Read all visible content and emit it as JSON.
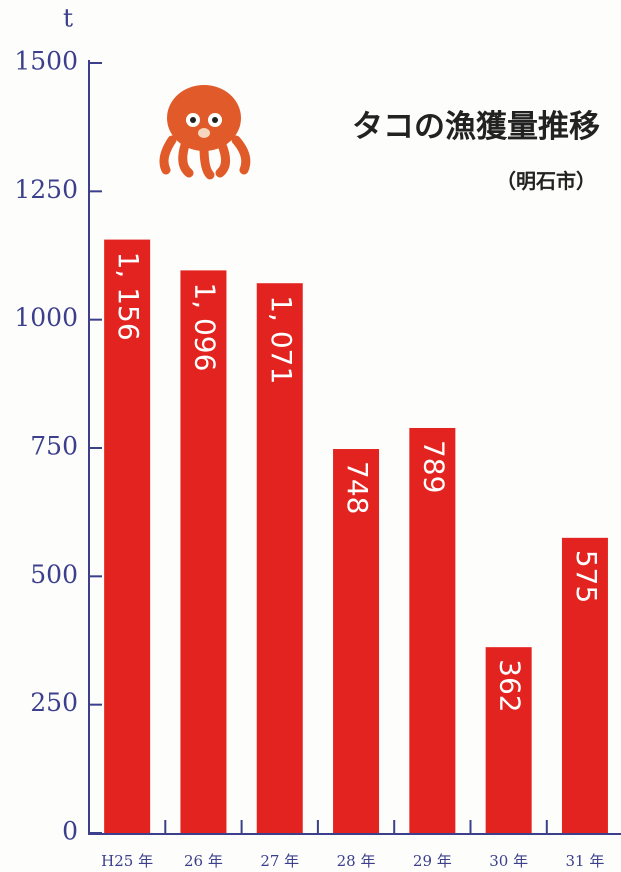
{
  "chart_data": {
    "type": "bar",
    "title": "タコの漁獲量推移",
    "subtitle": "（明石市）",
    "y_label": "t",
    "categories": [
      "H25 年",
      "26 年",
      "27 年",
      "28 年",
      "29 年",
      "30 年",
      "31 年"
    ],
    "values": [
      1156,
      1096,
      1071,
      748,
      789,
      362,
      575
    ],
    "value_labels": [
      "1, 156",
      "1, 096",
      "1, 071",
      "748",
      "789",
      "362",
      "575"
    ],
    "color": "#e3231f",
    "ylim": [
      0,
      1500
    ],
    "yticks": [
      0,
      250,
      500,
      750,
      1000,
      1250,
      1500
    ]
  }
}
